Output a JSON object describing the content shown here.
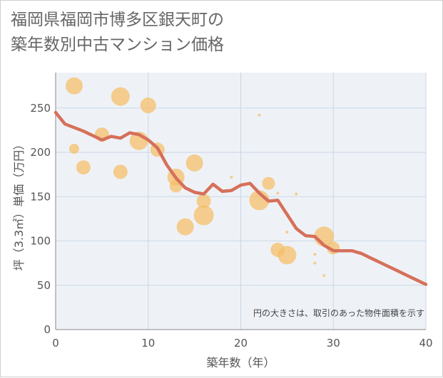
{
  "title_lines": [
    "福岡県福岡市博多区銀天町の",
    "築年数別中古マンション価格"
  ],
  "chart_data": {
    "type": "scatter",
    "xlabel": "築年数（年）",
    "ylabel": "坪（3.3㎡）単価（万円）",
    "xlim": [
      0,
      40
    ],
    "ylim": [
      0,
      290
    ],
    "xticks": [
      0,
      10,
      20,
      30,
      40
    ],
    "yticks": [
      0,
      50,
      100,
      150,
      200,
      250
    ],
    "grid": true,
    "note": "円の大きさは、取引のあった物件面積を示す",
    "colors": {
      "bubble": "#f5bf6a",
      "line": "#d6705a",
      "grid": "#c9d7e6",
      "plot_bg": "#eef2f7"
    },
    "bubbles": [
      {
        "x": 2,
        "y": 275,
        "s": 12
      },
      {
        "x": 2,
        "y": 204,
        "s": 7
      },
      {
        "x": 3,
        "y": 183,
        "s": 10
      },
      {
        "x": 5,
        "y": 220,
        "s": 10
      },
      {
        "x": 7,
        "y": 263,
        "s": 13
      },
      {
        "x": 7,
        "y": 178,
        "s": 10
      },
      {
        "x": 9,
        "y": 213,
        "s": 13
      },
      {
        "x": 10,
        "y": 253,
        "s": 11
      },
      {
        "x": 11,
        "y": 203,
        "s": 10
      },
      {
        "x": 13,
        "y": 172,
        "s": 12
      },
      {
        "x": 13,
        "y": 162,
        "s": 9
      },
      {
        "x": 14,
        "y": 116,
        "s": 12
      },
      {
        "x": 15,
        "y": 188,
        "s": 12
      },
      {
        "x": 16,
        "y": 145,
        "s": 10
      },
      {
        "x": 16,
        "y": 129,
        "s": 14
      },
      {
        "x": 19,
        "y": 172,
        "s": 2
      },
      {
        "x": 22,
        "y": 242,
        "s": 2
      },
      {
        "x": 22,
        "y": 146,
        "s": 14
      },
      {
        "x": 23,
        "y": 165,
        "s": 9
      },
      {
        "x": 24,
        "y": 154,
        "s": 2
      },
      {
        "x": 24,
        "y": 90,
        "s": 10
      },
      {
        "x": 25,
        "y": 110,
        "s": 2
      },
      {
        "x": 25,
        "y": 84,
        "s": 13
      },
      {
        "x": 26,
        "y": 153,
        "s": 2
      },
      {
        "x": 28,
        "y": 85,
        "s": 2
      },
      {
        "x": 28,
        "y": 75,
        "s": 2
      },
      {
        "x": 29,
        "y": 105,
        "s": 14
      },
      {
        "x": 29,
        "y": 61,
        "s": 2
      },
      {
        "x": 30,
        "y": 92,
        "s": 9
      }
    ],
    "series": [
      {
        "x": [
          0,
          1,
          2,
          3,
          4,
          5,
          6,
          7,
          8,
          9,
          10,
          11,
          12,
          13,
          14,
          15,
          16,
          17,
          18,
          19,
          20,
          21,
          22,
          23,
          24,
          25,
          26,
          27,
          28,
          29,
          30,
          31,
          32,
          33,
          34,
          35,
          36,
          37,
          38,
          39,
          40
        ],
        "y": [
          245,
          232,
          228,
          224,
          219,
          214,
          218,
          216,
          222,
          220,
          214,
          205,
          186,
          171,
          160,
          155,
          153,
          164,
          156,
          157,
          163,
          165,
          154,
          145,
          146,
          130,
          114,
          106,
          105,
          95,
          89,
          89,
          89,
          86,
          81,
          76,
          71,
          66,
          61,
          56,
          51
        ]
      }
    ]
  }
}
